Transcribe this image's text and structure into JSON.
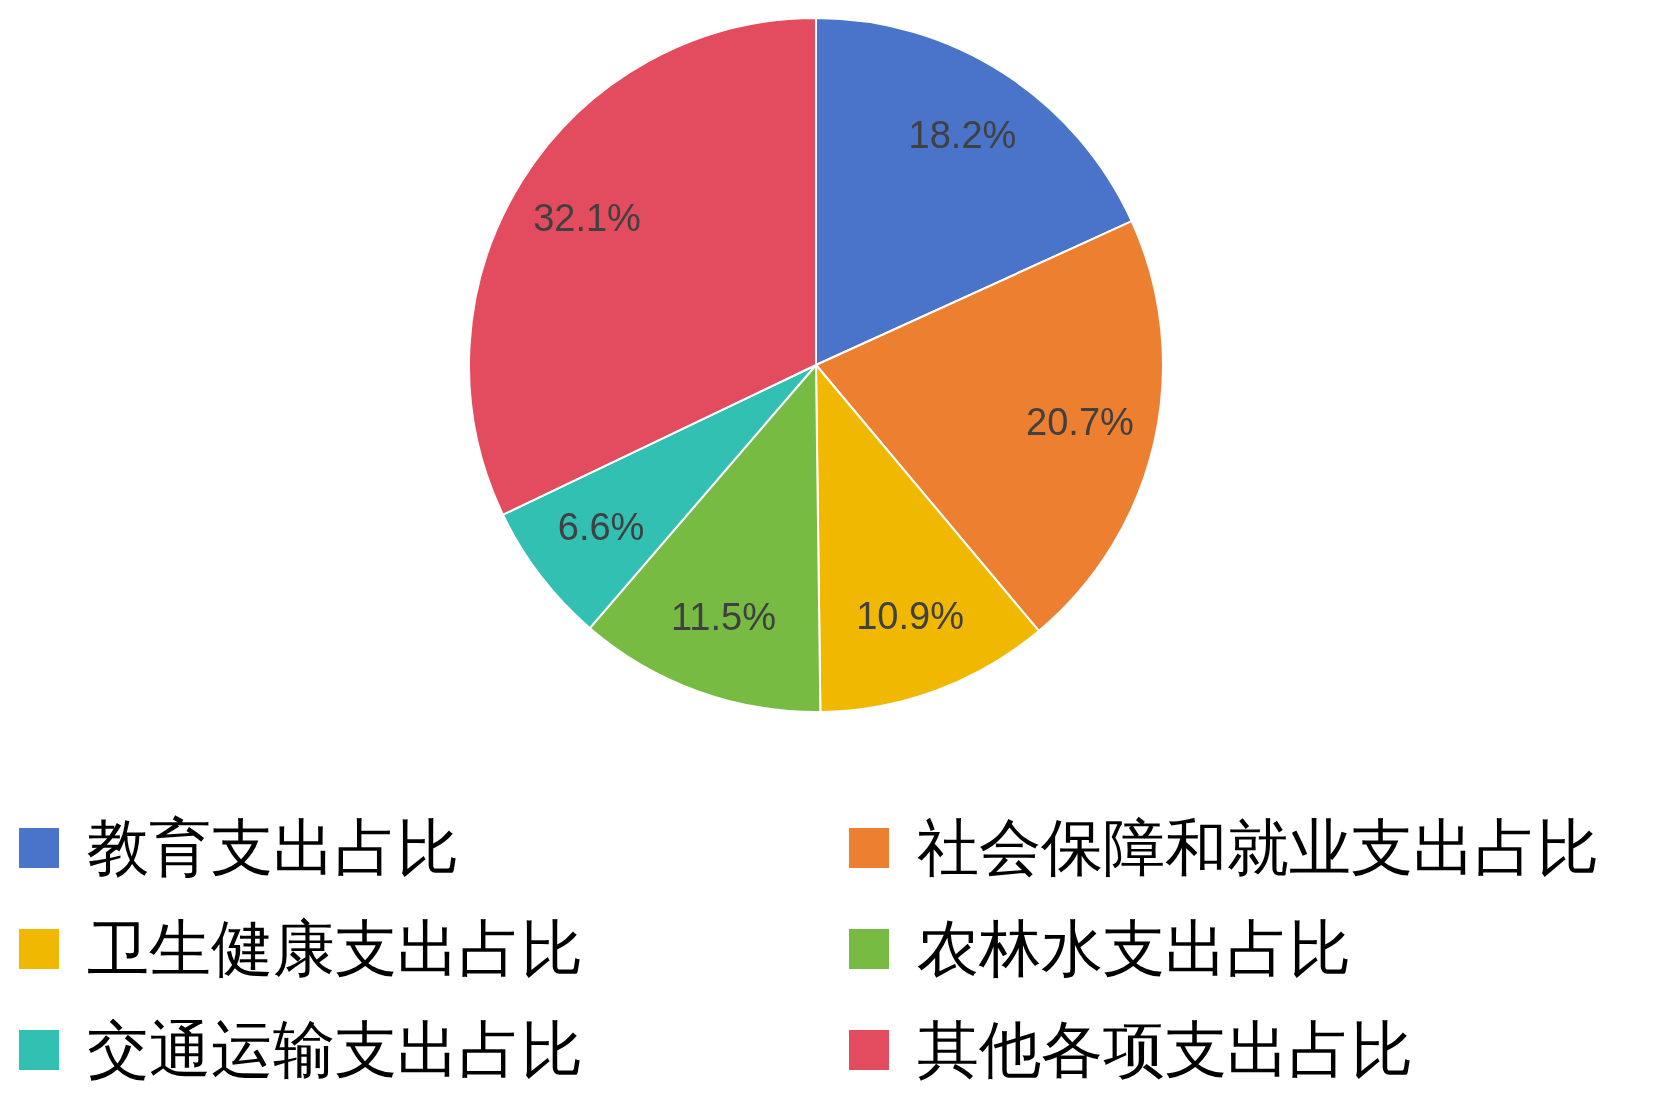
{
  "chart_data": {
    "type": "pie",
    "categories": [
      "教育支出占比",
      "社会保障和就业支出占比",
      "卫生健康支出占比",
      "农林水支出占比",
      "交通运输支出占比",
      "其他各项支出占比"
    ],
    "values": [
      18.2,
      20.7,
      10.9,
      11.5,
      6.6,
      32.1
    ],
    "colors": [
      "#4a74c9",
      "#ed7f31",
      "#f1b802",
      "#78bb43",
      "#32c0b2",
      "#e34c5e"
    ],
    "value_labels": [
      "18.2%",
      "20.7%",
      "10.9%",
      "11.5%",
      "6.6%",
      "32.1%"
    ],
    "legend": "bottom"
  }
}
